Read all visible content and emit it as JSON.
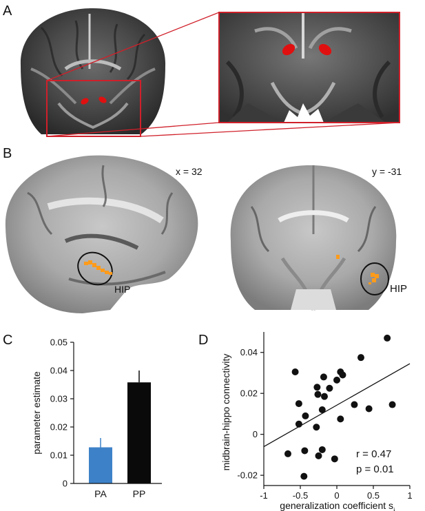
{
  "panels": {
    "a": {
      "letter": "A"
    },
    "b": {
      "letter": "B",
      "sagittal_coord": "x = 32",
      "coronal_coord": "y = -31",
      "roi_label": "HIP"
    },
    "c": {
      "letter": "C"
    },
    "d": {
      "letter": "D",
      "stat_r": "r = 0.47",
      "stat_p": "p = 0.01"
    }
  },
  "colors": {
    "roi_red": "#e01010",
    "box_red": "#d0202a",
    "bar_pa": "#3d82c8",
    "bar_pp": "#0a0a0a",
    "activation": "#ff9b1a"
  },
  "chart_data": [
    {
      "type": "bar",
      "panel": "C",
      "categories": [
        "PA",
        "PP"
      ],
      "values": [
        0.0128,
        0.0358
      ],
      "errors": [
        0.0033,
        0.0042
      ],
      "bar_colors": [
        "#3d82c8",
        "#0a0a0a"
      ],
      "xlabel": "",
      "ylabel": "parameter estimate",
      "ylim": [
        0,
        0.05
      ],
      "yticks": [
        "0",
        "0.01",
        "0.02",
        "0.03",
        "0.04",
        "0.05"
      ],
      "grid": false
    },
    {
      "type": "scatter",
      "panel": "D",
      "xlabel": "generalization coefficient s",
      "xlabel_subscript": "i",
      "ylabel": "midbrain-hippo connectivity",
      "xlim": [
        -1,
        1
      ],
      "ylim": [
        -0.025,
        0.05
      ],
      "xticks": [
        "-1",
        "-0.5",
        "0",
        "0.5",
        "1"
      ],
      "yticks": [
        "-0.02",
        "0",
        "0.02",
        "0.04"
      ],
      "points": [
        {
          "x": 0.69,
          "y": 0.047
        },
        {
          "x": 0.33,
          "y": 0.0375
        },
        {
          "x": -0.57,
          "y": 0.0305
        },
        {
          "x": 0.05,
          "y": 0.0305
        },
        {
          "x": 0.08,
          "y": 0.029
        },
        {
          "x": -0.18,
          "y": 0.028
        },
        {
          "x": 0.0,
          "y": 0.0265
        },
        {
          "x": -0.27,
          "y": 0.023
        },
        {
          "x": -0.1,
          "y": 0.0225
        },
        {
          "x": -0.26,
          "y": 0.0195
        },
        {
          "x": -0.17,
          "y": 0.0185
        },
        {
          "x": -0.52,
          "y": 0.015
        },
        {
          "x": 0.76,
          "y": 0.0145
        },
        {
          "x": 0.24,
          "y": 0.0145
        },
        {
          "x": 0.44,
          "y": 0.0125
        },
        {
          "x": -0.2,
          "y": 0.012
        },
        {
          "x": -0.43,
          "y": 0.009
        },
        {
          "x": 0.05,
          "y": 0.0075
        },
        {
          "x": -0.52,
          "y": 0.005
        },
        {
          "x": -0.28,
          "y": 0.0035
        },
        {
          "x": -0.44,
          "y": -0.008
        },
        {
          "x": -0.2,
          "y": -0.0075
        },
        {
          "x": -0.67,
          "y": -0.0095
        },
        {
          "x": -0.25,
          "y": -0.0105
        },
        {
          "x": -0.03,
          "y": -0.012
        },
        {
          "x": -0.45,
          "y": -0.0205
        }
      ],
      "fit_line": {
        "x": [
          -1,
          1
        ],
        "y": [
          -0.006,
          0.0345
        ]
      },
      "grid": false
    }
  ]
}
